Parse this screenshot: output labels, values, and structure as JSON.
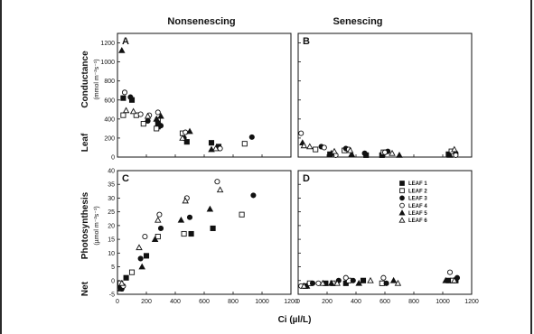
{
  "titles": {
    "left": "Nonsenescing",
    "right": "Senescing"
  },
  "axes": {
    "top_ylabel_line1": "Leaf",
    "top_ylabel_line2": "Conductance",
    "top_yunit": "(mmol m⁻²s⁻¹)",
    "bottom_ylabel_line1": "Net",
    "bottom_ylabel_line2": "Photosynthesis",
    "bottom_yunit": "(µmol m⁻²s⁻¹)",
    "xlabel": "Ci (µl/L)"
  },
  "chart_data": [
    {
      "type": "scatter",
      "panel": "A",
      "xlim": [
        0,
        1200
      ],
      "ylim": [
        0,
        1300
      ],
      "xticks": [],
      "yticks": [
        0,
        200,
        400,
        600,
        800,
        1000,
        1200
      ],
      "series": [
        {
          "name": "LEAF 1",
          "x": [
            40,
            100,
            280,
            480,
            650,
            700
          ],
          "y": [
            620,
            600,
            320,
            160,
            150,
            110
          ]
        },
        {
          "name": "LEAF 2",
          "x": [
            40,
            130,
            180,
            270,
            280,
            450,
            880
          ],
          "y": [
            440,
            440,
            350,
            300,
            390,
            250,
            140
          ]
        },
        {
          "name": "LEAF 3",
          "x": [
            90,
            210,
            280,
            300,
            460,
            930
          ],
          "y": [
            630,
            380,
            360,
            330,
            200,
            210
          ]
        },
        {
          "name": "LEAF 4",
          "x": [
            50,
            160,
            220,
            280,
            470,
            710
          ],
          "y": [
            680,
            450,
            440,
            470,
            260,
            90
          ]
        },
        {
          "name": "LEAF 5",
          "x": [
            30,
            270,
            300,
            500,
            650
          ],
          "y": [
            1120,
            400,
            430,
            270,
            80
          ]
        },
        {
          "name": "LEAF 6",
          "x": [
            60,
            110,
            210,
            450,
            680
          ],
          "y": [
            490,
            480,
            430,
            200,
            90
          ]
        }
      ]
    },
    {
      "type": "scatter",
      "panel": "B",
      "xlim": [
        0,
        1200
      ],
      "ylim": [
        0,
        1300
      ],
      "xticks": [],
      "yticks": [],
      "series": [
        {
          "name": "LEAF 1",
          "x": [
            220,
            470,
            580,
            1040
          ],
          "y": [
            30,
            20,
            20,
            30
          ]
        },
        {
          "name": "LEAF 2",
          "x": [
            120,
            320,
            590,
            1060
          ],
          "y": [
            80,
            70,
            50,
            60
          ]
        },
        {
          "name": "LEAF 3",
          "x": [
            160,
            330,
            460,
            620,
            1090
          ],
          "y": [
            110,
            90,
            40,
            60,
            40
          ]
        },
        {
          "name": "LEAF 4",
          "x": [
            20,
            180,
            260,
            350,
            600,
            1090
          ],
          "y": [
            250,
            100,
            20,
            80,
            50,
            20
          ]
        },
        {
          "name": "LEAF 5",
          "x": [
            30,
            230,
            370,
            700,
            1050
          ],
          "y": [
            150,
            40,
            30,
            20,
            20
          ]
        },
        {
          "name": "LEAF 6",
          "x": [
            40,
            80,
            250,
            360,
            650,
            1080
          ],
          "y": [
            120,
            110,
            60,
            70,
            40,
            80
          ]
        }
      ]
    },
    {
      "type": "scatter",
      "panel": "C",
      "xlim": [
        0,
        1200
      ],
      "ylim": [
        -5,
        40
      ],
      "xticks": [
        0,
        200,
        400,
        600,
        800,
        1000,
        1200
      ],
      "yticks": [
        -5,
        0,
        5,
        10,
        15,
        20,
        25,
        30,
        35,
        40
      ],
      "series": [
        {
          "name": "LEAF 1",
          "x": [
            20,
            60,
            200,
            510,
            660
          ],
          "y": [
            -2,
            1,
            9,
            17,
            19
          ]
        },
        {
          "name": "LEAF 2",
          "x": [
            20,
            100,
            280,
            460,
            860
          ],
          "y": [
            -1,
            3,
            16,
            17,
            24
          ]
        },
        {
          "name": "LEAF 3",
          "x": [
            30,
            160,
            300,
            500,
            940
          ],
          "y": [
            -3,
            8,
            19,
            23,
            31
          ]
        },
        {
          "name": "LEAF 4",
          "x": [
            40,
            190,
            290,
            480,
            690
          ],
          "y": [
            -2,
            16,
            24,
            30,
            36
          ]
        },
        {
          "name": "LEAF 5",
          "x": [
            20,
            170,
            260,
            440,
            640
          ],
          "y": [
            -3,
            5,
            15,
            22,
            26
          ]
        },
        {
          "name": "LEAF 6",
          "x": [
            30,
            150,
            280,
            470,
            710
          ],
          "y": [
            -1,
            12,
            22,
            29,
            33
          ]
        }
      ]
    },
    {
      "type": "scatter",
      "panel": "D",
      "xlim": [
        0,
        1200
      ],
      "ylim": [
        -5,
        40
      ],
      "xticks": [
        0,
        200,
        400,
        600,
        800,
        1000,
        1200
      ],
      "yticks": [],
      "series": [
        {
          "name": "LEAF 1",
          "x": [
            50,
            190,
            330,
            450,
            1040,
            1090
          ],
          "y": [
            -2,
            -1,
            -1,
            0,
            0,
            0
          ]
        },
        {
          "name": "LEAF 2",
          "x": [
            80,
            240,
            350,
            580,
            1070
          ],
          "y": [
            -1,
            -1,
            0,
            -1,
            0
          ]
        },
        {
          "name": "LEAF 3",
          "x": [
            100,
            280,
            380,
            610,
            1100
          ],
          "y": [
            -1,
            0,
            0,
            -1,
            1
          ]
        },
        {
          "name": "LEAF 4",
          "x": [
            20,
            140,
            330,
            590,
            1050
          ],
          "y": [
            -2,
            -1,
            1,
            1,
            3
          ]
        },
        {
          "name": "LEAF 5",
          "x": [
            60,
            230,
            420,
            660,
            1020
          ],
          "y": [
            -2,
            -1,
            -1,
            0,
            0
          ]
        },
        {
          "name": "LEAF 6",
          "x": [
            40,
            170,
            270,
            500,
            690,
            1080
          ],
          "y": [
            -2,
            -1,
            -1,
            0,
            -1,
            0
          ]
        }
      ]
    }
  ],
  "legend": [
    {
      "label": "LEAF 1",
      "marker": "square-filled"
    },
    {
      "label": "LEAF 2",
      "marker": "square-open"
    },
    {
      "label": "LEAF 3",
      "marker": "circle-filled"
    },
    {
      "label": "LEAF 4",
      "marker": "circle-open"
    },
    {
      "label": "LEAF 5",
      "marker": "triangle-filled"
    },
    {
      "label": "LEAF 6",
      "marker": "triangle-open"
    }
  ],
  "colors": {
    "ink": "#111111",
    "frame": "#2a2a2a"
  }
}
